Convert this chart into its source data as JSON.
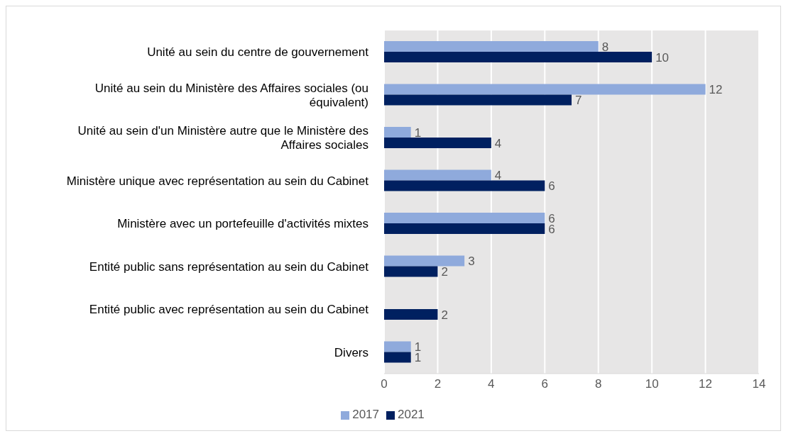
{
  "chart_data": {
    "type": "bar",
    "orientation": "horizontal",
    "categories": [
      "Unité au sein du centre de gouvernement",
      "Unité au sein du Ministère des Affaires sociales (ou équivalent)",
      "Unité au sein d'un Ministère autre que le Ministère des Affaires sociales",
      "Ministère unique avec représentation au sein du Cabinet",
      "Ministère avec un portefeuille d'activités mixtes",
      "Entité public sans représentation au sein du Cabinet",
      "Entité public avec représentation au sein du Cabinet",
      "Divers"
    ],
    "series": [
      {
        "name": "2017",
        "color": "#8faadc",
        "values": [
          8,
          12,
          1,
          4,
          6,
          3,
          null,
          1
        ]
      },
      {
        "name": "2021",
        "color": "#002060",
        "values": [
          10,
          7,
          4,
          6,
          6,
          2,
          2,
          1
        ]
      }
    ],
    "xlim": [
      0,
      14
    ],
    "xticks": [
      0,
      2,
      4,
      6,
      8,
      10,
      12,
      14
    ],
    "grid": "x",
    "legend": "bottom",
    "data_labels": true
  }
}
